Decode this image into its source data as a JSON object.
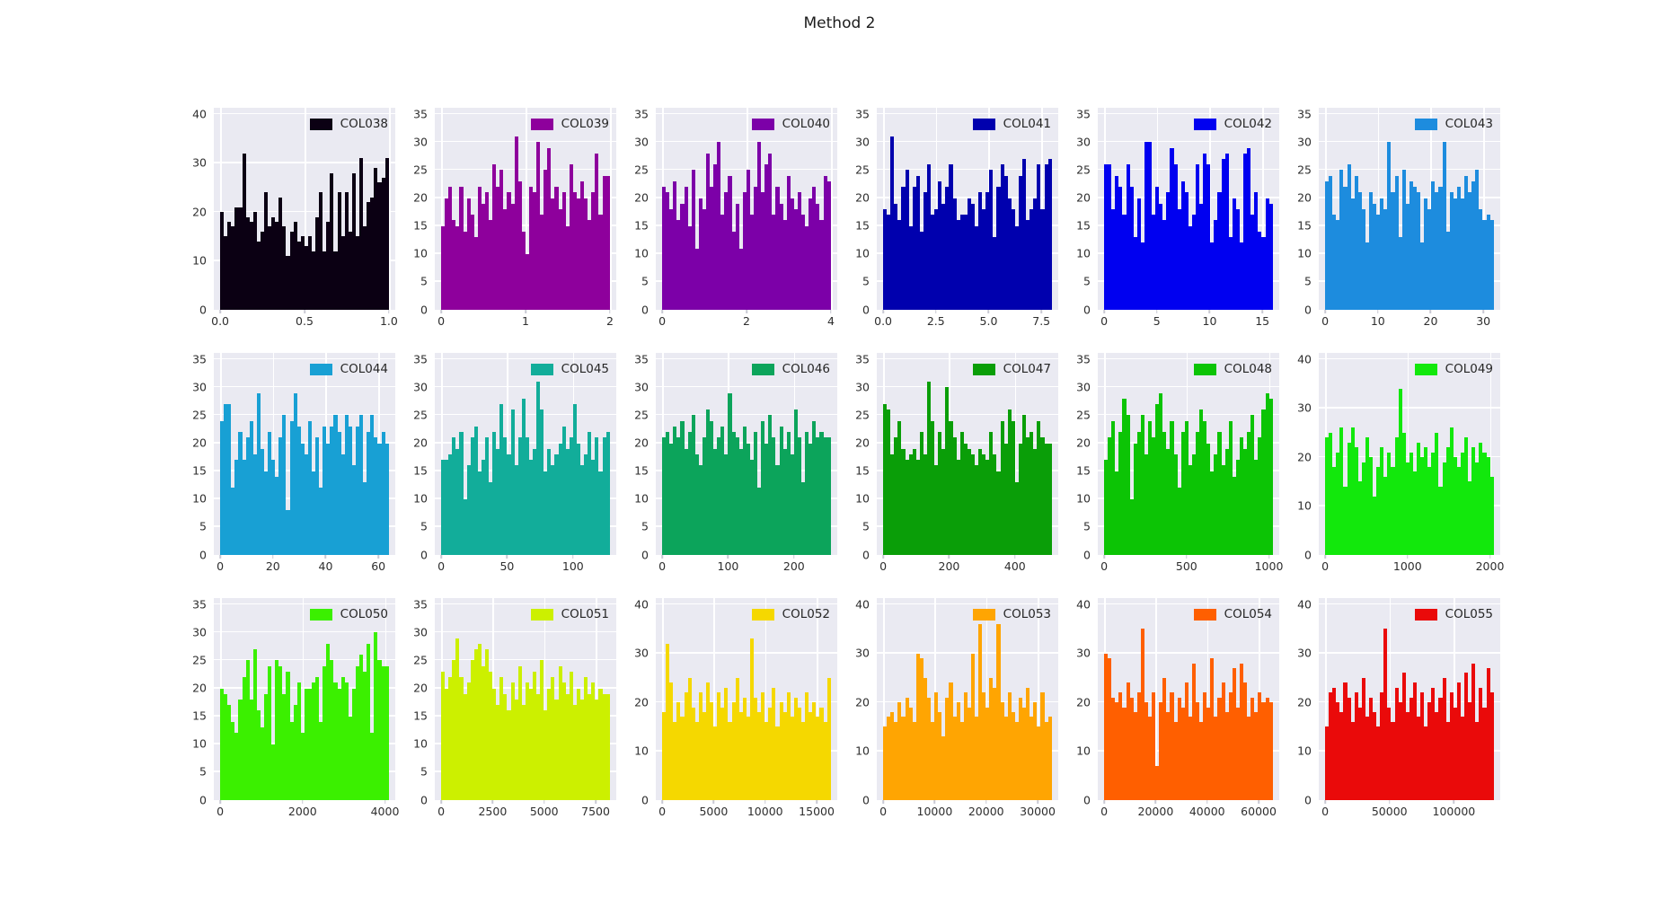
{
  "title": "Method 2",
  "plot_background": "#EAEAF2",
  "gridline_color": "#ffffff",
  "chart_data": [
    {
      "type": "histogram",
      "label": "COL038",
      "color": "#0B0013",
      "yticks": [
        0,
        10,
        20,
        30,
        40
      ],
      "ylim": [
        0,
        40
      ],
      "xticks": {
        "labels": [
          "0.0",
          "0.5",
          "1.0"
        ],
        "values": [
          0,
          0.5,
          1
        ]
      },
      "xmax": 1,
      "values": [
        20,
        15,
        18,
        17,
        21,
        21,
        32,
        19,
        18,
        20,
        14,
        16,
        24,
        17,
        19,
        18,
        23,
        17,
        11,
        16,
        18,
        14,
        15,
        13,
        15,
        12,
        19,
        24,
        12,
        18,
        28,
        12,
        24,
        15,
        24,
        16,
        28,
        15,
        31,
        17,
        22,
        23,
        29,
        26,
        27,
        31
      ]
    },
    {
      "type": "histogram",
      "label": "COL039",
      "color": "#8E009C",
      "yticks": [
        0,
        5,
        10,
        15,
        20,
        25,
        30,
        35
      ],
      "ylim": [
        0,
        35
      ],
      "xticks": {
        "labels": [
          "0",
          "1",
          "2"
        ],
        "values": [
          0,
          1,
          2
        ]
      },
      "xmax": 2,
      "values": [
        15,
        20,
        22,
        16,
        15,
        22,
        14,
        20,
        17,
        13,
        22,
        19,
        21,
        16,
        26,
        22,
        25,
        18,
        21,
        19,
        31,
        23,
        14,
        10,
        22,
        21,
        30,
        17,
        25,
        29,
        20,
        22,
        18,
        21,
        15,
        26,
        21,
        20,
        23,
        20,
        16,
        21,
        28,
        17,
        24,
        24
      ]
    },
    {
      "type": "histogram",
      "label": "COL040",
      "color": "#7C00A8",
      "yticks": [
        0,
        5,
        10,
        15,
        20,
        25,
        30,
        35
      ],
      "ylim": [
        0,
        35
      ],
      "xticks": {
        "labels": [
          "0",
          "2",
          "4"
        ],
        "values": [
          0,
          2,
          4
        ]
      },
      "xmax": 4,
      "values": [
        22,
        21,
        18,
        23,
        16,
        19,
        22,
        15,
        25,
        11,
        20,
        18,
        28,
        22,
        26,
        30,
        17,
        21,
        24,
        14,
        19,
        11,
        21,
        25,
        17,
        22,
        30,
        21,
        26,
        28,
        17,
        22,
        19,
        16,
        24,
        20,
        18,
        21,
        17,
        15,
        20,
        22,
        19,
        16,
        24,
        23
      ]
    },
    {
      "type": "histogram",
      "label": "COL041",
      "color": "#0000AE",
      "yticks": [
        0,
        5,
        10,
        15,
        20,
        25,
        30,
        35
      ],
      "ylim": [
        0,
        35
      ],
      "xticks": {
        "labels": [
          "0.0",
          "2.5",
          "5.0",
          "7.5"
        ],
        "values": [
          0,
          2.5,
          5,
          7.5
        ]
      },
      "xmax": 8,
      "values": [
        18,
        17,
        31,
        19,
        16,
        22,
        25,
        15,
        22,
        24,
        14,
        21,
        26,
        17,
        18,
        23,
        19,
        22,
        26,
        20,
        16,
        17,
        17,
        20,
        19,
        15,
        21,
        18,
        21,
        25,
        13,
        22,
        26,
        24,
        20,
        18,
        15,
        24,
        27,
        16,
        18,
        20,
        26,
        18,
        26,
        27
      ]
    },
    {
      "type": "histogram",
      "label": "COL042",
      "color": "#0000F0",
      "yticks": [
        0,
        5,
        10,
        15,
        20,
        25,
        30,
        35
      ],
      "ylim": [
        0,
        35
      ],
      "xticks": {
        "labels": [
          "0",
          "5",
          "10",
          "15"
        ],
        "values": [
          0,
          5,
          10,
          15
        ]
      },
      "xmax": 16,
      "values": [
        26,
        26,
        18,
        24,
        22,
        17,
        26,
        22,
        13,
        20,
        12,
        30,
        30,
        17,
        22,
        19,
        16,
        21,
        29,
        26,
        18,
        23,
        21,
        15,
        17,
        26,
        19,
        28,
        26,
        12,
        16,
        21,
        27,
        28,
        13,
        20,
        18,
        12,
        28,
        29,
        17,
        21,
        14,
        13,
        20,
        19
      ]
    },
    {
      "type": "histogram",
      "label": "COL043",
      "color": "#1D8CDE",
      "yticks": [
        0,
        5,
        10,
        15,
        20,
        25,
        30,
        35
      ],
      "ylim": [
        0,
        35
      ],
      "xticks": {
        "labels": [
          "0",
          "10",
          "20",
          "30"
        ],
        "values": [
          0,
          10,
          20,
          30
        ]
      },
      "xmax": 32,
      "values": [
        23,
        24,
        17,
        16,
        25,
        22,
        26,
        20,
        24,
        21,
        18,
        12,
        21,
        19,
        17,
        20,
        18,
        30,
        21,
        24,
        13,
        25,
        19,
        23,
        22,
        21,
        12,
        20,
        18,
        23,
        21,
        22,
        30,
        14,
        21,
        20,
        22,
        20,
        24,
        21,
        23,
        25,
        18,
        16,
        17,
        16
      ]
    },
    {
      "type": "histogram",
      "label": "COL044",
      "color": "#18A0D4",
      "yticks": [
        0,
        5,
        10,
        15,
        20,
        25,
        30,
        35
      ],
      "ylim": [
        0,
        35
      ],
      "xticks": {
        "labels": [
          "0",
          "20",
          "40",
          "60"
        ],
        "values": [
          0,
          20,
          40,
          60
        ]
      },
      "xmax": 64,
      "values": [
        24,
        27,
        27,
        12,
        17,
        22,
        17,
        21,
        24,
        18,
        29,
        19,
        15,
        22,
        17,
        14,
        21,
        25,
        8,
        24,
        29,
        23,
        20,
        18,
        24,
        15,
        21,
        12,
        23,
        20,
        23,
        25,
        22,
        18,
        25,
        23,
        16,
        23,
        25,
        13,
        22,
        25,
        21,
        20,
        22,
        20
      ]
    },
    {
      "type": "histogram",
      "label": "COL045",
      "color": "#12AD9A",
      "yticks": [
        0,
        5,
        10,
        15,
        20,
        25,
        30,
        35
      ],
      "ylim": [
        0,
        35
      ],
      "xticks": {
        "labels": [
          "0",
          "50",
          "100"
        ],
        "values": [
          0,
          50,
          100
        ]
      },
      "xmax": 128,
      "values": [
        17,
        17,
        18,
        21,
        19,
        22,
        10,
        16,
        21,
        23,
        15,
        17,
        21,
        13,
        22,
        19,
        27,
        21,
        18,
        26,
        16,
        21,
        28,
        21,
        17,
        19,
        31,
        26,
        15,
        19,
        16,
        18,
        20,
        23,
        19,
        21,
        27,
        20,
        16,
        18,
        22,
        17,
        21,
        15,
        21,
        22
      ]
    },
    {
      "type": "histogram",
      "label": "COL046",
      "color": "#0CA45B",
      "yticks": [
        0,
        5,
        10,
        15,
        20,
        25,
        30,
        35
      ],
      "ylim": [
        0,
        35
      ],
      "xticks": {
        "labels": [
          "0",
          "100",
          "200"
        ],
        "values": [
          0,
          100,
          200
        ]
      },
      "xmax": 256,
      "values": [
        21,
        22,
        20,
        23,
        21,
        24,
        19,
        22,
        25,
        18,
        16,
        21,
        26,
        24,
        19,
        21,
        23,
        18,
        29,
        22,
        21,
        19,
        23,
        20,
        17,
        22,
        12,
        24,
        20,
        25,
        21,
        16,
        23,
        19,
        22,
        18,
        26,
        21,
        13,
        22,
        20,
        24,
        21,
        22,
        21,
        21
      ]
    },
    {
      "type": "histogram",
      "label": "COL047",
      "color": "#0A9E08",
      "yticks": [
        0,
        5,
        10,
        15,
        20,
        25,
        30,
        35
      ],
      "ylim": [
        0,
        35
      ],
      "xticks": {
        "labels": [
          "0",
          "200",
          "400"
        ],
        "values": [
          0,
          200,
          400
        ]
      },
      "xmax": 512,
      "values": [
        27,
        26,
        18,
        21,
        24,
        19,
        17,
        18,
        19,
        17,
        22,
        18,
        31,
        24,
        16,
        22,
        19,
        30,
        24,
        21,
        17,
        22,
        20,
        19,
        18,
        16,
        19,
        18,
        17,
        22,
        18,
        15,
        24,
        20,
        26,
        24,
        13,
        20,
        25,
        21,
        22,
        19,
        24,
        21,
        20,
        20
      ]
    },
    {
      "type": "histogram",
      "label": "COL048",
      "color": "#0CC405",
      "yticks": [
        0,
        5,
        10,
        15,
        20,
        25,
        30,
        35
      ],
      "ylim": [
        0,
        35
      ],
      "xticks": {
        "labels": [
          "0",
          "500",
          "1000"
        ],
        "values": [
          0,
          500,
          1000
        ]
      },
      "xmax": 1024,
      "values": [
        17,
        21,
        24,
        15,
        22,
        28,
        25,
        10,
        20,
        22,
        25,
        18,
        24,
        21,
        27,
        29,
        22,
        19,
        24,
        18,
        12,
        22,
        24,
        16,
        18,
        22,
        26,
        24,
        20,
        15,
        18,
        22,
        16,
        19,
        24,
        14,
        17,
        21,
        19,
        22,
        25,
        17,
        21,
        26,
        29,
        28
      ]
    },
    {
      "type": "histogram",
      "label": "COL049",
      "color": "#12E80C",
      "yticks": [
        0,
        10,
        20,
        30,
        40
      ],
      "ylim": [
        0,
        40
      ],
      "xticks": {
        "labels": [
          "0",
          "1000",
          "2000"
        ],
        "values": [
          0,
          1000,
          2000
        ]
      },
      "xmax": 2048,
      "values": [
        24,
        25,
        18,
        21,
        26,
        14,
        23,
        26,
        22,
        15,
        19,
        24,
        20,
        12,
        18,
        22,
        16,
        21,
        18,
        24,
        34,
        25,
        19,
        21,
        17,
        23,
        20,
        22,
        18,
        21,
        25,
        14,
        19,
        22,
        26,
        20,
        18,
        21,
        24,
        15,
        22,
        19,
        23,
        21,
        20,
        16
      ]
    },
    {
      "type": "histogram",
      "label": "COL050",
      "color": "#3BF000",
      "yticks": [
        0,
        5,
        10,
        15,
        20,
        25,
        30,
        35
      ],
      "ylim": [
        0,
        35
      ],
      "xticks": {
        "labels": [
          "0",
          "2000",
          "4000"
        ],
        "values": [
          0,
          2000,
          4000
        ]
      },
      "xmax": 4096,
      "values": [
        20,
        19,
        17,
        14,
        12,
        18,
        22,
        25,
        18,
        27,
        16,
        13,
        19,
        24,
        10,
        25,
        24,
        19,
        23,
        14,
        17,
        21,
        12,
        20,
        20,
        21,
        22,
        14,
        24,
        28,
        25,
        21,
        20,
        22,
        21,
        15,
        20,
        24,
        26,
        23,
        28,
        12,
        30,
        25,
        24,
        24
      ]
    },
    {
      "type": "histogram",
      "label": "COL051",
      "color": "#CCF000",
      "yticks": [
        0,
        5,
        10,
        15,
        20,
        25,
        30,
        35
      ],
      "ylim": [
        0,
        35
      ],
      "xticks": {
        "labels": [
          "0",
          "2500",
          "5000",
          "7500"
        ],
        "values": [
          0,
          2500,
          5000,
          7500
        ]
      },
      "xmax": 8192,
      "values": [
        23,
        20,
        22,
        25,
        29,
        22,
        19,
        21,
        25,
        27,
        28,
        24,
        27,
        23,
        20,
        17,
        22,
        19,
        16,
        21,
        18,
        24,
        17,
        21,
        20,
        23,
        19,
        25,
        16,
        20,
        22,
        18,
        24,
        21,
        19,
        23,
        17,
        20,
        18,
        22,
        19,
        21,
        18,
        20,
        19,
        19
      ]
    },
    {
      "type": "histogram",
      "label": "COL052",
      "color": "#F5D800",
      "yticks": [
        0,
        10,
        20,
        30,
        40
      ],
      "ylim": [
        0,
        40
      ],
      "xticks": {
        "labels": [
          "0",
          "5000",
          "10000",
          "15000"
        ],
        "values": [
          0,
          5000,
          10000,
          15000
        ]
      },
      "xmax": 16384,
      "values": [
        18,
        32,
        24,
        16,
        20,
        17,
        22,
        25,
        19,
        16,
        22,
        18,
        24,
        20,
        15,
        22,
        19,
        23,
        16,
        20,
        25,
        18,
        21,
        17,
        33,
        21,
        18,
        22,
        16,
        19,
        23,
        15,
        20,
        18,
        22,
        17,
        21,
        19,
        16,
        22,
        18,
        20,
        17,
        19,
        16,
        25
      ]
    },
    {
      "type": "histogram",
      "label": "COL053",
      "color": "#FFA502",
      "yticks": [
        0,
        10,
        20,
        30,
        40
      ],
      "ylim": [
        0,
        40
      ],
      "xticks": {
        "labels": [
          "0",
          "10000",
          "20000",
          "30000"
        ],
        "values": [
          0,
          10000,
          20000,
          30000
        ]
      },
      "xmax": 32768,
      "values": [
        15,
        17,
        18,
        16,
        20,
        17,
        21,
        19,
        16,
        30,
        29,
        25,
        21,
        16,
        22,
        18,
        13,
        21,
        24,
        17,
        20,
        16,
        22,
        19,
        30,
        17,
        36,
        22,
        19,
        25,
        23,
        36,
        20,
        17,
        22,
        18,
        16,
        21,
        19,
        23,
        17,
        20,
        15,
        22,
        16,
        17
      ]
    },
    {
      "type": "histogram",
      "label": "COL054",
      "color": "#FF5F00",
      "yticks": [
        0,
        10,
        20,
        30,
        40
      ],
      "ylim": [
        0,
        40
      ],
      "xticks": {
        "labels": [
          "0",
          "20000",
          "40000",
          "60000"
        ],
        "values": [
          0,
          20000,
          40000,
          60000
        ]
      },
      "xmax": 65536,
      "values": [
        30,
        29,
        21,
        20,
        22,
        19,
        24,
        21,
        18,
        22,
        35,
        20,
        17,
        22,
        7,
        20,
        25,
        18,
        22,
        16,
        21,
        19,
        24,
        17,
        28,
        20,
        16,
        22,
        19,
        29,
        17,
        21,
        24,
        18,
        22,
        27,
        19,
        28,
        24,
        17,
        21,
        18,
        22,
        20,
        21,
        20
      ]
    },
    {
      "type": "histogram",
      "label": "COL055",
      "color": "#EA0A0A",
      "yticks": [
        0,
        10,
        20,
        30,
        40
      ],
      "ylim": [
        0,
        40
      ],
      "xticks": {
        "labels": [
          "0",
          "50000",
          "100000"
        ],
        "values": [
          0,
          50000,
          100000
        ]
      },
      "xmax": 131072,
      "values": [
        15,
        22,
        23,
        20,
        18,
        24,
        21,
        16,
        22,
        19,
        25,
        17,
        21,
        18,
        15,
        22,
        35,
        19,
        16,
        23,
        20,
        26,
        18,
        21,
        24,
        17,
        22,
        15,
        20,
        23,
        18,
        21,
        25,
        16,
        22,
        19,
        24,
        17,
        26,
        20,
        28,
        16,
        23,
        19,
        27,
        22
      ]
    }
  ]
}
